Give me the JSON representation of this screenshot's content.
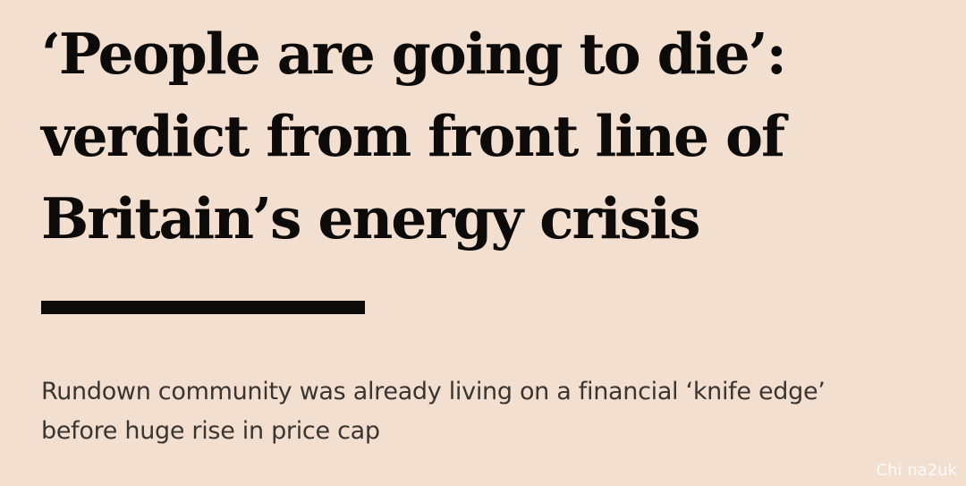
{
  "article": {
    "headline": "‘People are going to die’:\nverdict from front line of\nBritain’s energy crisis",
    "standfirst": "Rundown community was already living on a financial ‘knife edge’\nbefore huge rise in price cap"
  },
  "watermark": {
    "text": "Chi na2uk"
  },
  "colors": {
    "background": "#f2dfcf",
    "headline": "#0d0b09",
    "standfirst": "#3a3530",
    "rule": "#0d0b09",
    "watermark": "#ffffff"
  }
}
